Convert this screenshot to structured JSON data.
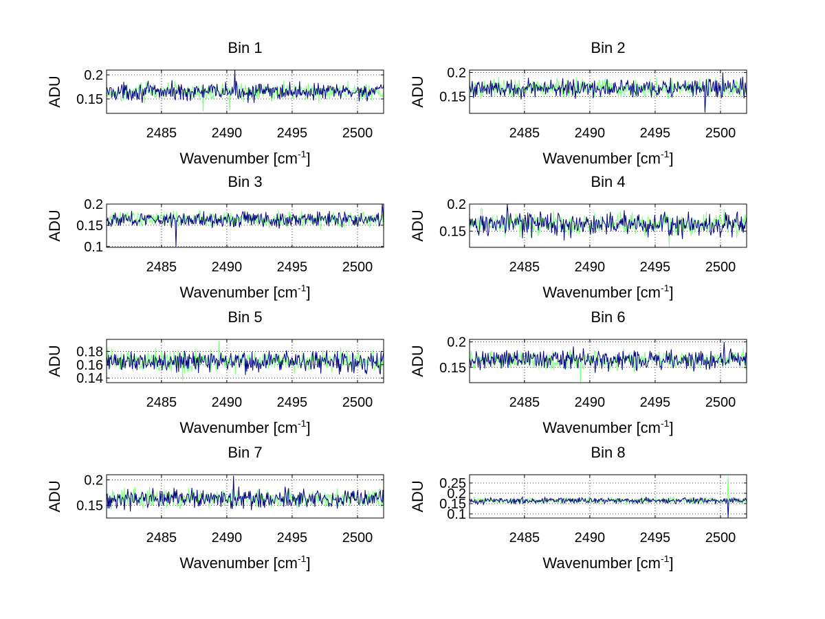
{
  "figure": {
    "background": "#ffffff",
    "series_colors": [
      "#00007f",
      "#7fff7f"
    ]
  },
  "chart_data": [
    {
      "type": "line",
      "title": "Bin 1",
      "xlabel": "Wavenumber [cm",
      "xlabel_sup": "-1",
      "ylabel": "ADU",
      "xlim": [
        2480.8,
        2502
      ],
      "ylim": [
        0.12,
        0.21
      ],
      "xticks": [
        2485,
        2490,
        2495,
        2500
      ],
      "yticks": [
        0.15,
        0.2
      ],
      "ytick_labels": [
        "0.15",
        "0.2"
      ],
      "grid": "dotted",
      "baseline": 0.165,
      "noise_amplitude": 0.013,
      "spikes": [
        {
          "x": 2490.6,
          "y": 0.21,
          "series": 0
        },
        {
          "x": 2488.2,
          "y": 0.124,
          "series": 1
        },
        {
          "x": 2490.2,
          "y": 0.125,
          "series": 1
        }
      ]
    },
    {
      "type": "line",
      "title": "Bin 2",
      "xlabel": "Wavenumber [cm",
      "xlabel_sup": "-1",
      "ylabel": "ADU",
      "xlim": [
        2480.8,
        2502
      ],
      "ylim": [
        0.115,
        0.205
      ],
      "xticks": [
        2485,
        2490,
        2495,
        2500
      ],
      "yticks": [
        0.15,
        0.2
      ],
      "ytick_labels": [
        "0.15",
        "0.2"
      ],
      "grid": "dotted",
      "baseline": 0.167,
      "noise_amplitude": 0.014,
      "spikes": [
        {
          "x": 2498.8,
          "y": 0.117,
          "series": 0
        },
        {
          "x": 2500.2,
          "y": 0.2,
          "series": 0
        }
      ]
    },
    {
      "type": "line",
      "title": "Bin 3",
      "xlabel": "Wavenumber [cm",
      "xlabel_sup": "-1",
      "ylabel": "ADU",
      "xlim": [
        2480.8,
        2502
      ],
      "ylim": [
        0.098,
        0.2
      ],
      "xticks": [
        2485,
        2490,
        2495,
        2500
      ],
      "yticks": [
        0.1,
        0.15,
        0.2
      ],
      "ytick_labels": [
        "0.1",
        "0.15",
        "0.2"
      ],
      "grid": "dotted",
      "baseline": 0.164,
      "noise_amplitude": 0.013,
      "spikes": [
        {
          "x": 2486.1,
          "y": 0.1,
          "series": 0
        },
        {
          "x": 2501.9,
          "y": 0.2,
          "series": 0
        }
      ]
    },
    {
      "type": "line",
      "title": "Bin 4",
      "xlabel": "Wavenumber [cm",
      "xlabel_sup": "-1",
      "ylabel": "ADU",
      "xlim": [
        2480.8,
        2502
      ],
      "ylim": [
        0.12,
        0.2
      ],
      "xticks": [
        2485,
        2490,
        2495,
        2500
      ],
      "yticks": [
        0.15,
        0.2
      ],
      "ytick_labels": [
        "0.15",
        "0.2"
      ],
      "grid": "dotted",
      "baseline": 0.163,
      "noise_amplitude": 0.016,
      "spikes": [
        {
          "x": 2496.1,
          "y": 0.121,
          "series": 1
        },
        {
          "x": 2483.7,
          "y": 0.2,
          "series": 0
        }
      ]
    },
    {
      "type": "line",
      "title": "Bin 5",
      "xlabel": "Wavenumber [cm",
      "xlabel_sup": "-1",
      "ylabel": "ADU",
      "xlim": [
        2480.8,
        2502
      ],
      "ylim": [
        0.133,
        0.198
      ],
      "xticks": [
        2485,
        2490,
        2495,
        2500
      ],
      "yticks": [
        0.14,
        0.16,
        0.18
      ],
      "ytick_labels": [
        "0.14",
        "0.16",
        "0.18"
      ],
      "grid": "dotted",
      "baseline": 0.165,
      "noise_amplitude": 0.012,
      "spikes": [
        {
          "x": 2489.4,
          "y": 0.196,
          "series": 1
        },
        {
          "x": 2486.6,
          "y": 0.136,
          "series": 1
        }
      ]
    },
    {
      "type": "line",
      "title": "Bin 6",
      "xlabel": "Wavenumber [cm",
      "xlabel_sup": "-1",
      "ylabel": "ADU",
      "xlim": [
        2480.8,
        2502
      ],
      "ylim": [
        0.12,
        0.205
      ],
      "xticks": [
        2485,
        2490,
        2495,
        2500
      ],
      "yticks": [
        0.15,
        0.2
      ],
      "ytick_labels": [
        "0.15",
        "0.2"
      ],
      "grid": "dotted",
      "baseline": 0.165,
      "noise_amplitude": 0.014,
      "spikes": [
        {
          "x": 2489.3,
          "y": 0.121,
          "series": 1
        },
        {
          "x": 2500.3,
          "y": 0.2,
          "series": 0
        }
      ]
    },
    {
      "type": "line",
      "title": "Bin 7",
      "xlabel": "Wavenumber [cm",
      "xlabel_sup": "-1",
      "ylabel": "ADU",
      "xlim": [
        2480.8,
        2502
      ],
      "ylim": [
        0.125,
        0.21
      ],
      "xticks": [
        2485,
        2490,
        2495,
        2500
      ],
      "yticks": [
        0.15,
        0.2
      ],
      "ytick_labels": [
        "0.15",
        "0.2"
      ],
      "grid": "dotted",
      "baseline": 0.163,
      "noise_amplitude": 0.013,
      "spikes": [
        {
          "x": 2490.5,
          "y": 0.208,
          "series": 0
        }
      ]
    },
    {
      "type": "line",
      "title": "Bin 8",
      "xlabel": "Wavenumber [cm",
      "xlabel_sup": "-1",
      "ylabel": "ADU",
      "xlim": [
        2480.8,
        2502
      ],
      "ylim": [
        0.08,
        0.29
      ],
      "xticks": [
        2485,
        2490,
        2495,
        2500
      ],
      "yticks": [
        0.1,
        0.15,
        0.2,
        0.25
      ],
      "ytick_labels": [
        "0.1",
        "0.15",
        "0.2",
        "0.25"
      ],
      "grid": "dotted",
      "baseline": 0.165,
      "noise_amplitude": 0.011,
      "spikes": [
        {
          "x": 2500.6,
          "y": 0.285,
          "series": 1
        },
        {
          "x": 2500.6,
          "y": 0.082,
          "series": 0
        }
      ]
    }
  ]
}
